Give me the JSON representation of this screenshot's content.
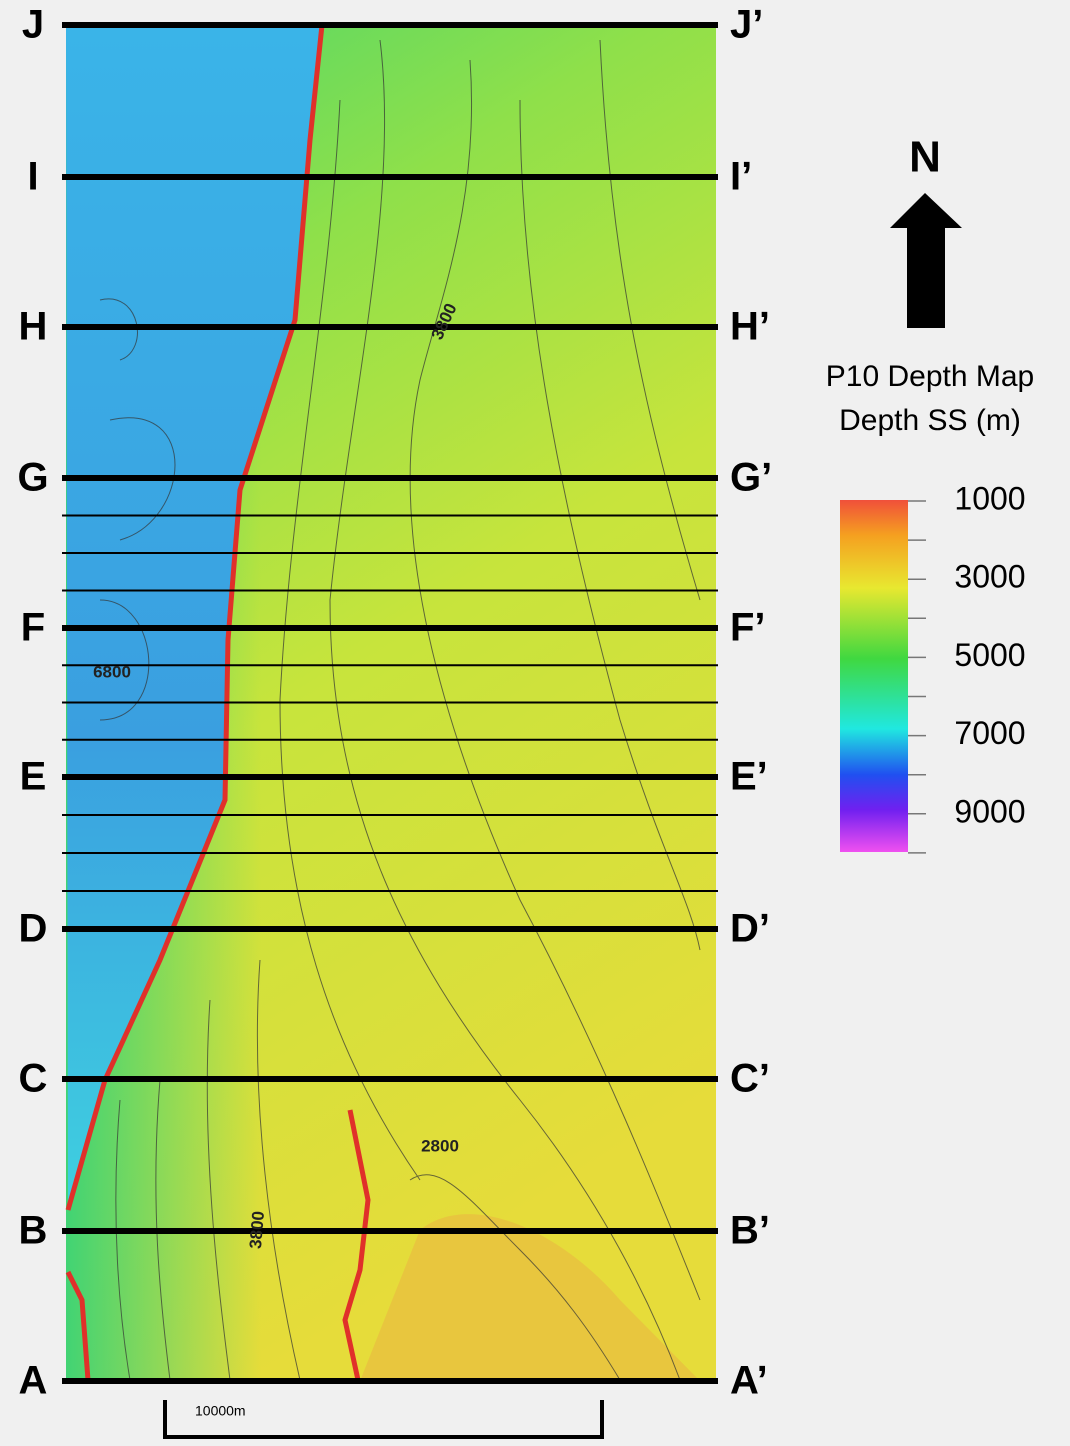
{
  "sections": [
    {
      "left": "A",
      "right": "A’"
    },
    {
      "left": "B",
      "right": "B’"
    },
    {
      "left": "C",
      "right": "C’"
    },
    {
      "left": "D",
      "right": "D’"
    },
    {
      "left": "E",
      "right": "E’"
    },
    {
      "left": "F",
      "right": "F’"
    },
    {
      "left": "G",
      "right": "G’"
    },
    {
      "left": "H",
      "right": "H’"
    },
    {
      "left": "I",
      "right": "I’"
    },
    {
      "left": "J",
      "right": "J’"
    }
  ],
  "contour_labels": [
    "3800",
    "6800",
    "2800",
    "3800"
  ],
  "scale_bar": "10000m",
  "north": "N",
  "legend": {
    "title": "P10 Depth Map",
    "subtitle": "Depth SS (m)",
    "ticks": [
      1000,
      3000,
      5000,
      7000,
      9000
    ]
  }
}
